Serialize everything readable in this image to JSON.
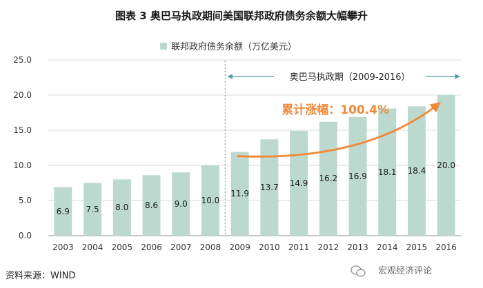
{
  "colors": {
    "bar": "#bcd9cf",
    "accent": "#f08a3a",
    "axis": "#8a8a8a",
    "period_line": "#4a9e9e",
    "text": "#1a1a1a"
  },
  "chart_data": {
    "type": "bar",
    "title": "图表 3  奥巴马执政期间美国联邦政府债务余额大幅攀升",
    "legend": [
      "联邦政府债务余额（万亿美元）"
    ],
    "categories": [
      "2003",
      "2004",
      "2005",
      "2006",
      "2007",
      "2008",
      "2009",
      "2010",
      "2011",
      "2012",
      "2013",
      "2014",
      "2015",
      "2016"
    ],
    "series": [
      {
        "name": "联邦政府债务余额（万亿美元）",
        "values": [
          6.9,
          7.5,
          8.0,
          8.6,
          9.0,
          10.0,
          11.9,
          13.7,
          14.9,
          16.2,
          16.9,
          18.1,
          18.4,
          20.0
        ],
        "value_labels": [
          "6.9",
          "7.5",
          "8.0",
          "8.6",
          "9.0",
          "10.0",
          "11.9",
          "13.7",
          "14.9",
          "16.2",
          "16.9",
          "18.1",
          "18.4",
          "20.0"
        ]
      }
    ],
    "ylim": [
      0,
      25
    ],
    "yticks": [
      "0.0",
      "5.0",
      "10.0",
      "15.0",
      "20.0",
      "25.0"
    ],
    "annotations": {
      "period_label": "奥巴马执政期（2009-2016）",
      "period_start": "2009",
      "period_end": "2016",
      "growth_label": "累计涨幅：100.4%"
    }
  },
  "footer": {
    "source": "资料来源：WIND",
    "watermark": "宏观经济评论"
  }
}
